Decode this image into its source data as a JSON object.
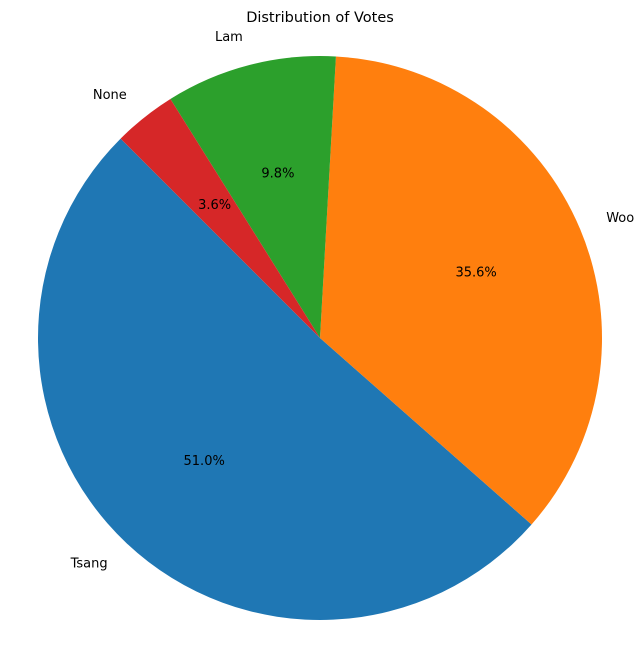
{
  "chart_data": {
    "type": "pie",
    "title": "Distribution of Votes",
    "start_angle_deg": 135,
    "direction": "counterclockwise",
    "slices": [
      {
        "label": "Tsang",
        "value": 51.0,
        "pct_label": "51.0%",
        "color": "#1f77b4"
      },
      {
        "label": "Woo",
        "value": 35.6,
        "pct_label": "35.6%",
        "color": "#ff7f0e"
      },
      {
        "label": "Lam",
        "value": 9.8,
        "pct_label": "9.8%",
        "color": "#2ca02c"
      },
      {
        "label": "None",
        "value": 3.6,
        "pct_label": "3.6%",
        "color": "#d62728"
      }
    ]
  }
}
